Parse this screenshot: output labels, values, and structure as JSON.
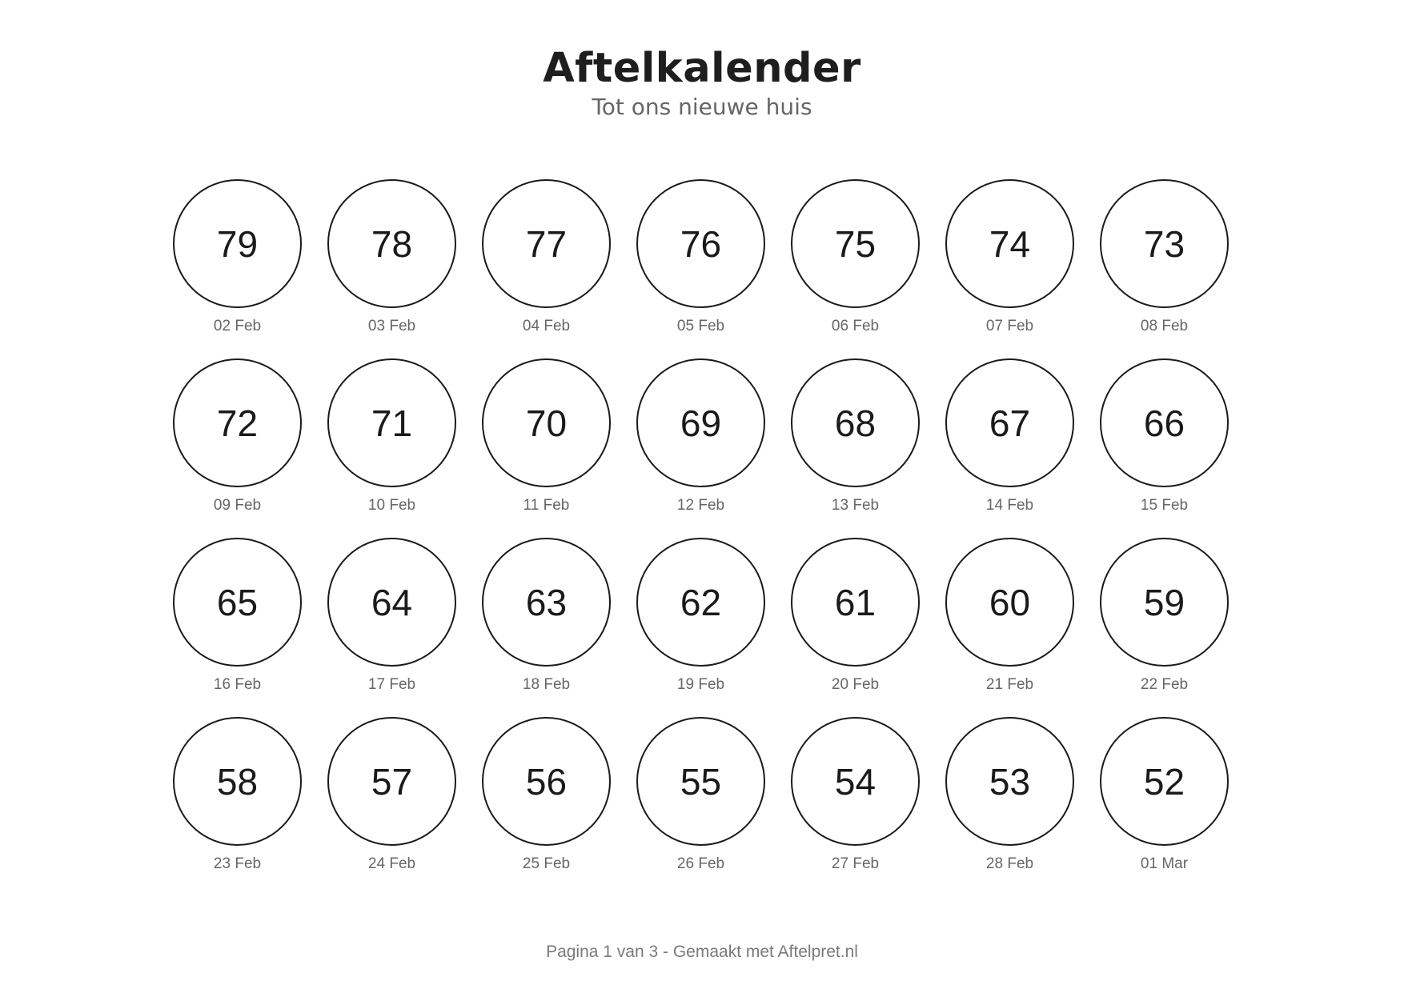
{
  "header": {
    "title": "Aftelkalender",
    "subtitle": "Tot ons nieuwe huis"
  },
  "days": [
    {
      "number": "79",
      "date": "02 Feb"
    },
    {
      "number": "78",
      "date": "03 Feb"
    },
    {
      "number": "77",
      "date": "04 Feb"
    },
    {
      "number": "76",
      "date": "05 Feb"
    },
    {
      "number": "75",
      "date": "06 Feb"
    },
    {
      "number": "74",
      "date": "07 Feb"
    },
    {
      "number": "73",
      "date": "08 Feb"
    },
    {
      "number": "72",
      "date": "09 Feb"
    },
    {
      "number": "71",
      "date": "10 Feb"
    },
    {
      "number": "70",
      "date": "11 Feb"
    },
    {
      "number": "69",
      "date": "12 Feb"
    },
    {
      "number": "68",
      "date": "13 Feb"
    },
    {
      "number": "67",
      "date": "14 Feb"
    },
    {
      "number": "66",
      "date": "15 Feb"
    },
    {
      "number": "65",
      "date": "16 Feb"
    },
    {
      "number": "64",
      "date": "17 Feb"
    },
    {
      "number": "63",
      "date": "18 Feb"
    },
    {
      "number": "62",
      "date": "19 Feb"
    },
    {
      "number": "61",
      "date": "20 Feb"
    },
    {
      "number": "60",
      "date": "21 Feb"
    },
    {
      "number": "59",
      "date": "22 Feb"
    },
    {
      "number": "58",
      "date": "23 Feb"
    },
    {
      "number": "57",
      "date": "24 Feb"
    },
    {
      "number": "56",
      "date": "25 Feb"
    },
    {
      "number": "55",
      "date": "26 Feb"
    },
    {
      "number": "54",
      "date": "27 Feb"
    },
    {
      "number": "53",
      "date": "28 Feb"
    },
    {
      "number": "52",
      "date": "01 Mar"
    }
  ],
  "footer": {
    "text": "Pagina 1 van 3 - Gemaakt met Aftelpret.nl"
  }
}
